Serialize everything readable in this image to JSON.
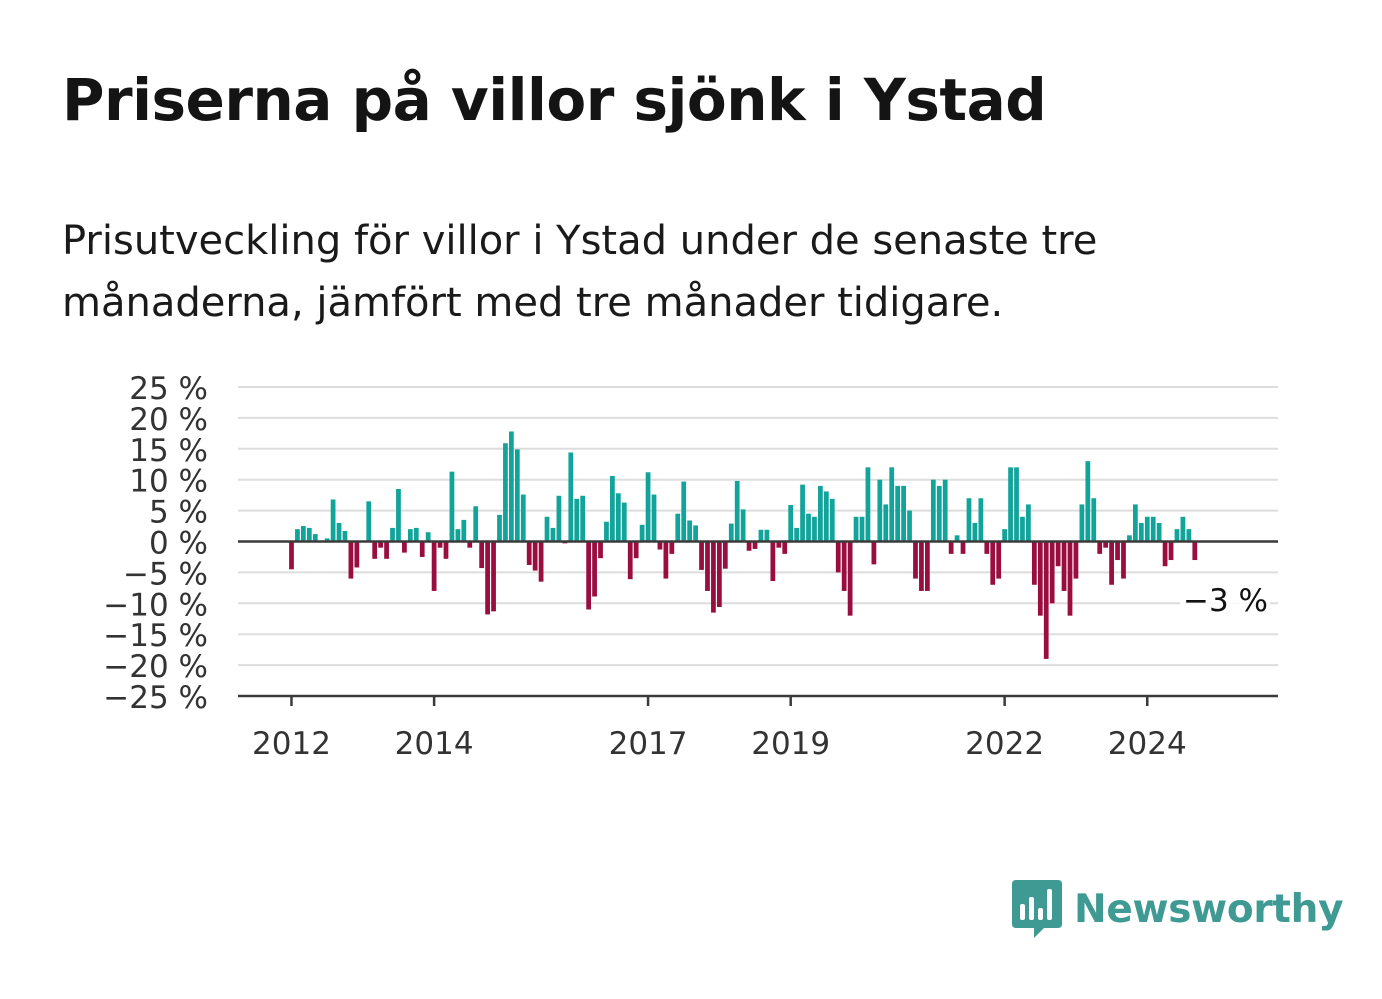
{
  "title": "Priserna på villor sjönk i Ystad",
  "subtitle": "Prisutveckling för villor i Ystad under de senaste tre månaderna, jämfört med tre månader tidigare.",
  "brand": {
    "name": "Newsworthy",
    "icon": "newsworthy-bar-chart-icon",
    "color": "#3f9a94"
  },
  "colors": {
    "positive": "#12a39a",
    "negative": "#990d3f",
    "grid": "#dddddd",
    "axis": "#3a3a3a"
  },
  "chart_data": {
    "type": "bar",
    "title": "Priserna på villor sjönk i Ystad",
    "xlabel": "",
    "ylabel": "",
    "ylim": [
      -25,
      25
    ],
    "yticks": [
      25,
      20,
      15,
      10,
      5,
      0,
      -5,
      -10,
      -15,
      -20,
      -25
    ],
    "ytick_labels": [
      "25 %",
      "20 %",
      "15 %",
      "10 %",
      "5 %",
      "0 %",
      "−5 %",
      "−10 %",
      "−15 %",
      "−20 %",
      "−25 %"
    ],
    "xlim": [
      "2011-04",
      "2025-11"
    ],
    "xticks": [
      {
        "date": "2012-01",
        "label": "2012"
      },
      {
        "date": "2014-01",
        "label": "2014"
      },
      {
        "date": "2017-01",
        "label": "2017"
      },
      {
        "date": "2019-01",
        "label": "2019"
      },
      {
        "date": "2022-01",
        "label": "2022"
      },
      {
        "date": "2024-01",
        "label": "2024"
      }
    ],
    "annotation": {
      "label": "−3 %",
      "date": "2024-10",
      "value": -3
    },
    "start_month": "2012-01",
    "values": [
      -4.5,
      2,
      2.5,
      2.2,
      1.2,
      0,
      0.5,
      6.8,
      3,
      1.7,
      -6,
      -4.2,
      0,
      6.5,
      -2.8,
      -1,
      -2.8,
      2.2,
      8.5,
      -1.8,
      2,
      2.2,
      -2.5,
      1.5,
      -8,
      -1,
      -2.8,
      11.3,
      2,
      3.5,
      -1,
      5.7,
      -4.3,
      -11.8,
      -11.3,
      4.3,
      15.9,
      17.8,
      14.9,
      7.6,
      -3.8,
      -4.7,
      -6.5,
      4,
      2.2,
      7.4,
      -0.3,
      14.4,
      6.9,
      7.4,
      -11,
      -8.9,
      -2.7,
      3.2,
      10.6,
      7.8,
      6.3,
      -6.1,
      -2.7,
      2.7,
      11.2,
      7.6,
      -1.3,
      -6,
      -2,
      4.5,
      9.7,
      3.4,
      2.6,
      -4.6,
      -8,
      -11.5,
      -10.6,
      -4.4,
      2.9,
      9.8,
      5.2,
      -1.5,
      -1.2,
      1.9,
      1.9,
      -6.4,
      -1,
      -2,
      5.9,
      2.2,
      9.2,
      4.5,
      4,
      9,
      8.1,
      6.9,
      -5,
      -8,
      -12,
      4,
      4,
      12,
      -3.7,
      10,
      6,
      12,
      9,
      9,
      5,
      -6,
      -8,
      -8,
      10,
      9,
      10,
      -2,
      1,
      -2,
      7,
      3,
      7,
      -2,
      -7,
      -6,
      2,
      12,
      12,
      4,
      6,
      -7,
      -12,
      -19,
      -10,
      -4,
      -8,
      -12,
      -6,
      6,
      13,
      7,
      -2,
      -1,
      -7,
      -3,
      -6,
      1,
      6,
      3,
      4,
      4,
      3,
      -4,
      -3,
      2,
      4,
      2,
      -3
    ]
  }
}
